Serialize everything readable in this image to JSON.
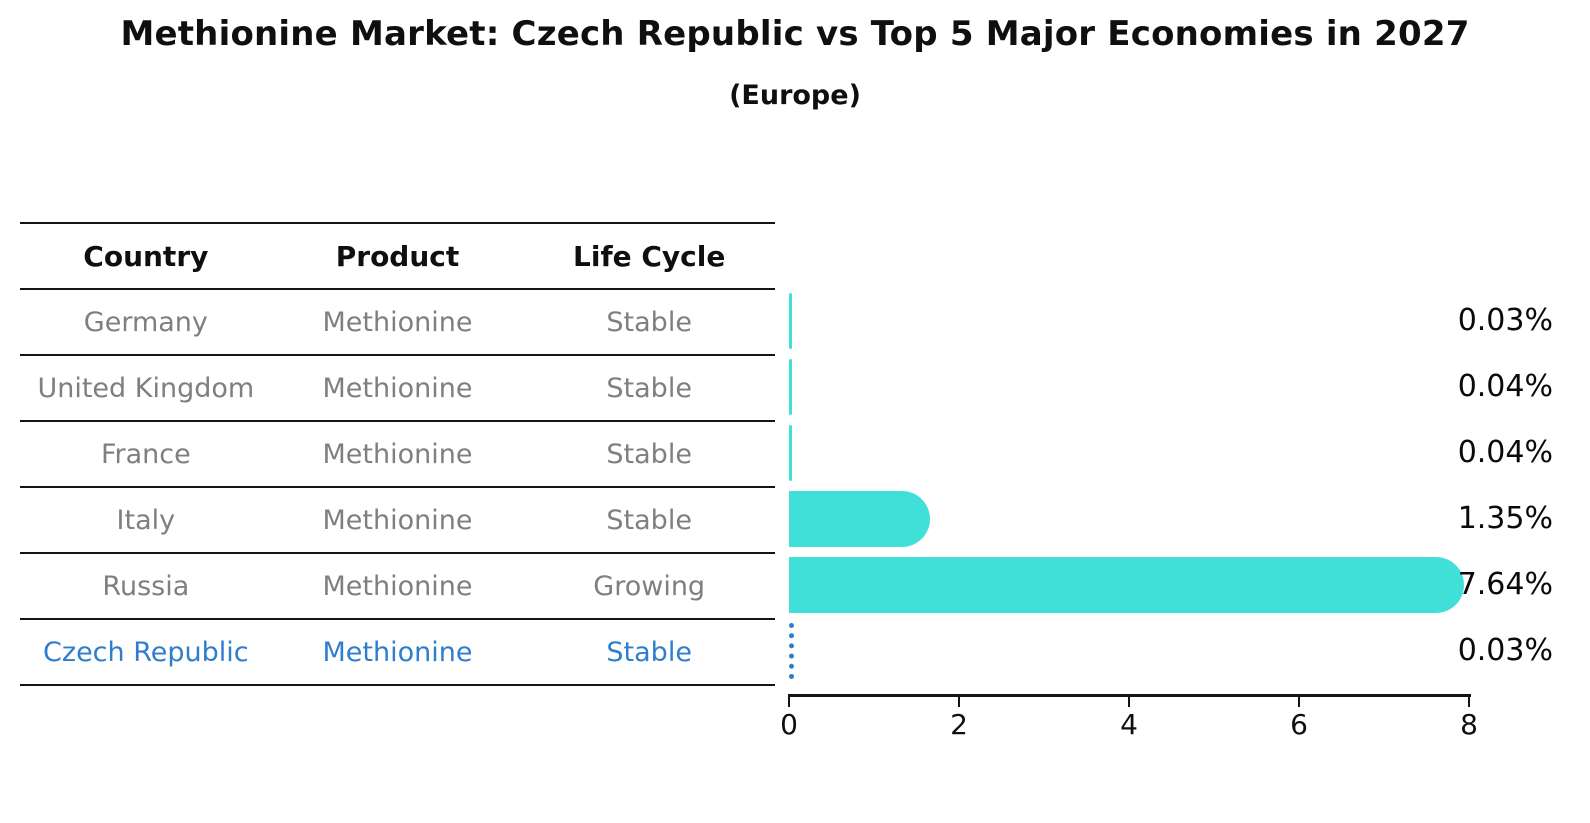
{
  "title": "Methionine Market: Czech Republic vs Top 5 Major Economies in 2027",
  "subtitle": "(Europe)",
  "table": {
    "headers": [
      "Country",
      "Product",
      "Life Cycle"
    ]
  },
  "rows": [
    {
      "country": "Germany",
      "product": "Methionine",
      "life_cycle": "Stable",
      "value": 0.03,
      "value_label": "0.03%",
      "highlight": false
    },
    {
      "country": "United Kingdom",
      "product": "Methionine",
      "life_cycle": "Stable",
      "value": 0.04,
      "value_label": "0.04%",
      "highlight": false
    },
    {
      "country": "France",
      "product": "Methionine",
      "life_cycle": "Stable",
      "value": 0.04,
      "value_label": "0.04%",
      "highlight": false
    },
    {
      "country": "Italy",
      "product": "Methionine",
      "life_cycle": "Stable",
      "value": 1.35,
      "value_label": "1.35%",
      "highlight": false
    },
    {
      "country": "Russia",
      "product": "Methionine",
      "life_cycle": "Growing",
      "value": 7.64,
      "value_label": "7.64%",
      "highlight": false
    },
    {
      "country": "Czech Republic",
      "product": "Methionine",
      "life_cycle": "Stable",
      "value": 0.03,
      "value_label": "0.03%",
      "highlight": true
    }
  ],
  "chart_data": {
    "type": "bar",
    "orientation": "horizontal",
    "title": "Methionine Market: Czech Republic vs Top 5 Major Economies in 2027",
    "subtitle": "(Europe)",
    "categories": [
      "Germany",
      "United Kingdom",
      "France",
      "Italy",
      "Russia",
      "Czech Republic"
    ],
    "values": [
      0.03,
      0.04,
      0.04,
      1.35,
      7.64,
      0.03
    ],
    "value_labels": [
      "0.03%",
      "0.04%",
      "0.04%",
      "1.35%",
      "7.64%",
      "0.03%"
    ],
    "life_cycles": [
      "Stable",
      "Stable",
      "Stable",
      "Stable",
      "Growing",
      "Stable"
    ],
    "product": "Methionine",
    "xlim": [
      0,
      8
    ],
    "xticks": [
      "0",
      "2",
      "4",
      "6",
      "8"
    ],
    "grid": false,
    "legend": false,
    "bar_color": "#40E0D9",
    "highlight_color": "#2E7ECD",
    "highlight_category": "Czech Republic",
    "highlight_style": "dotted-outline",
    "text_color": "#0f0f0f",
    "row_text_color": "#7f7f7f"
  }
}
